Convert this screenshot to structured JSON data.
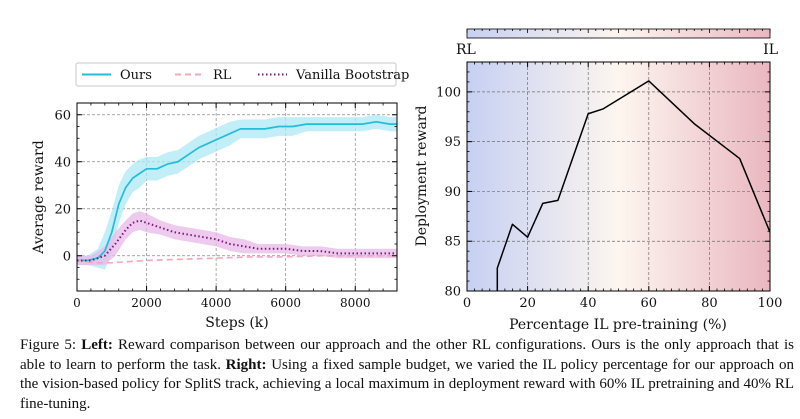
{
  "figure": {
    "left": {
      "chart_data": {
        "type": "line",
        "xlabel": "Steps (k)",
        "ylabel": "Average reward",
        "xlim": [
          0,
          9200
        ],
        "ylim": [
          -15,
          65
        ],
        "xticks": [
          0,
          2000,
          4000,
          6000,
          8000
        ],
        "yticks": [
          0,
          20,
          40,
          60
        ],
        "grid": true,
        "legend": "top",
        "series": [
          {
            "name": "Ours",
            "color": "#22bcdc",
            "band_color": "#aee8f6",
            "x": [
              0,
              300,
              600,
              800,
              1000,
              1200,
              1400,
              1600,
              1800,
              2000,
              2300,
              2600,
              2900,
              3200,
              3500,
              3800,
              4100,
              4400,
              4700,
              5000,
              5400,
              5800,
              6200,
              6600,
              7000,
              7400,
              7800,
              8200,
              8600,
              9000,
              9200
            ],
            "y": [
              -2,
              -2,
              -1,
              2,
              10,
              22,
              29,
              33,
              35,
              37,
              37,
              39,
              40,
              43,
              46,
              48,
              50,
              52,
              54,
              54,
              54,
              55,
              55,
              56,
              56,
              56,
              56,
              56,
              57,
              56,
              56
            ],
            "band": [
              2,
              2,
              4,
              8,
              9,
              8,
              7,
              6,
              6,
              5,
              5,
              5,
              5,
              5,
              5,
              5,
              5,
              5,
              4,
              4,
              4,
              4,
              4,
              3,
              3,
              3,
              3,
              3,
              3,
              3,
              3
            ]
          },
          {
            "name": "RL",
            "color": "#f3a9bd",
            "style": "dashed",
            "x": [
              0,
              500,
              1000,
              2000,
              3000,
              4000,
              5000,
              6000,
              7000,
              8000,
              9200
            ],
            "y": [
              -2,
              -3,
              -3,
              -2,
              -1.5,
              -1,
              -0.5,
              -0.5,
              0,
              0,
              0
            ]
          },
          {
            "name": "Vanilla Bootstrap",
            "color": "#7b1a78",
            "band_color": "#e8b8e8",
            "style": "dotted",
            "x": [
              0,
              400,
              800,
              1100,
              1400,
              1600,
              1800,
              2000,
              2400,
              2800,
              3200,
              3600,
              4000,
              4400,
              4800,
              5200,
              5600,
              6000,
              6500,
              7000,
              7500,
              8000,
              8500,
              9200
            ],
            "y": [
              -2,
              -2,
              0,
              5,
              11,
              14,
              15,
              14,
              12,
              10,
              9,
              8,
              7,
              5,
              4,
              3,
              3,
              3,
              2,
              2,
              1,
              1,
              1,
              1
            ],
            "band": [
              2,
              2,
              4,
              5,
              4,
              4,
              4,
              4,
              3,
              3,
              3,
              3,
              3,
              3,
              3,
              2,
              2,
              2,
              2,
              2,
              2,
              2,
              2,
              2
            ]
          }
        ]
      }
    },
    "right": {
      "chart_data": {
        "type": "line",
        "xlabel": "Percentage IL pre-training (%)",
        "ylabel": "Deployment reward",
        "xlim": [
          0,
          100
        ],
        "ylim": [
          80,
          103
        ],
        "xticks": [
          0,
          20,
          40,
          60,
          80,
          100
        ],
        "yticks": [
          80,
          85,
          90,
          95,
          100
        ],
        "grid": true,
        "colorbar": {
          "left_label": "RL",
          "right_label": "IL",
          "left_color": "#c6d0f2",
          "mid_color": "#fdf6ef",
          "right_color": "#eab7c1"
        },
        "series": [
          {
            "color": "#000000",
            "x": [
              10,
              10,
              15,
              20,
              25,
              30,
              40,
              45,
              60,
              75,
              90,
              100
            ],
            "y": [
              80,
              82.3,
              86.7,
              85.4,
              88.8,
              89.1,
              97.8,
              98.3,
              101.1,
              96.8,
              93.3,
              85.9
            ]
          }
        ]
      }
    },
    "caption": {
      "label": "Figure 5:",
      "left_head": "Left:",
      "left_text": "Reward comparison between our approach and the other RL configurations. Ours is the only approach that is able to learn to perform the task.",
      "right_head": "Right:",
      "right_text": "Using a fixed sample budget, we varied the IL policy percentage for our approach on the vision-based policy for SplitS track, achieving a local maximum in deployment reward with 60% IL pretraining and 40% RL fine-tuning."
    }
  }
}
